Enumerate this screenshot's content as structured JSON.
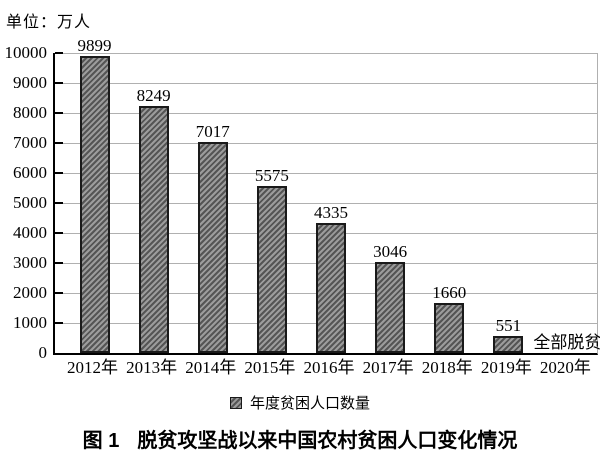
{
  "chart_data": {
    "type": "bar",
    "title": "图 1　脱贫攻坚战以来中国农村贫困人口变化情况",
    "unit_label": "单位：万人",
    "categories": [
      "2012年",
      "2013年",
      "2014年",
      "2015年",
      "2016年",
      "2017年",
      "2018年",
      "2019年",
      "2020年"
    ],
    "series": [
      {
        "name": "年度贫困人口数量",
        "values": [
          9899,
          8249,
          7017,
          5575,
          4335,
          3046,
          1660,
          551,
          null
        ]
      }
    ],
    "annotations": [
      {
        "category_index": 8,
        "text": "全部脱贫",
        "position": "baseline"
      }
    ],
    "xlabel": "",
    "ylabel": "",
    "ylim": [
      0,
      10000
    ],
    "ytick_step": 1000,
    "grid": "horizontal",
    "legend_position": "bottom",
    "colors": {
      "background": "#ffffff",
      "text": "#000000",
      "axis": "#000000",
      "gridline": "#b0b0b0",
      "bar_stripe_light": "#9c9c9c",
      "bar_stripe_dark": "#555555",
      "bar_border": "#1a1a1a"
    }
  },
  "legend": {
    "label": "年度贫困人口数量"
  },
  "caption": {
    "prefix": "图 1",
    "text": "脱贫攻坚战以来中国农村贫困人口变化情况"
  }
}
